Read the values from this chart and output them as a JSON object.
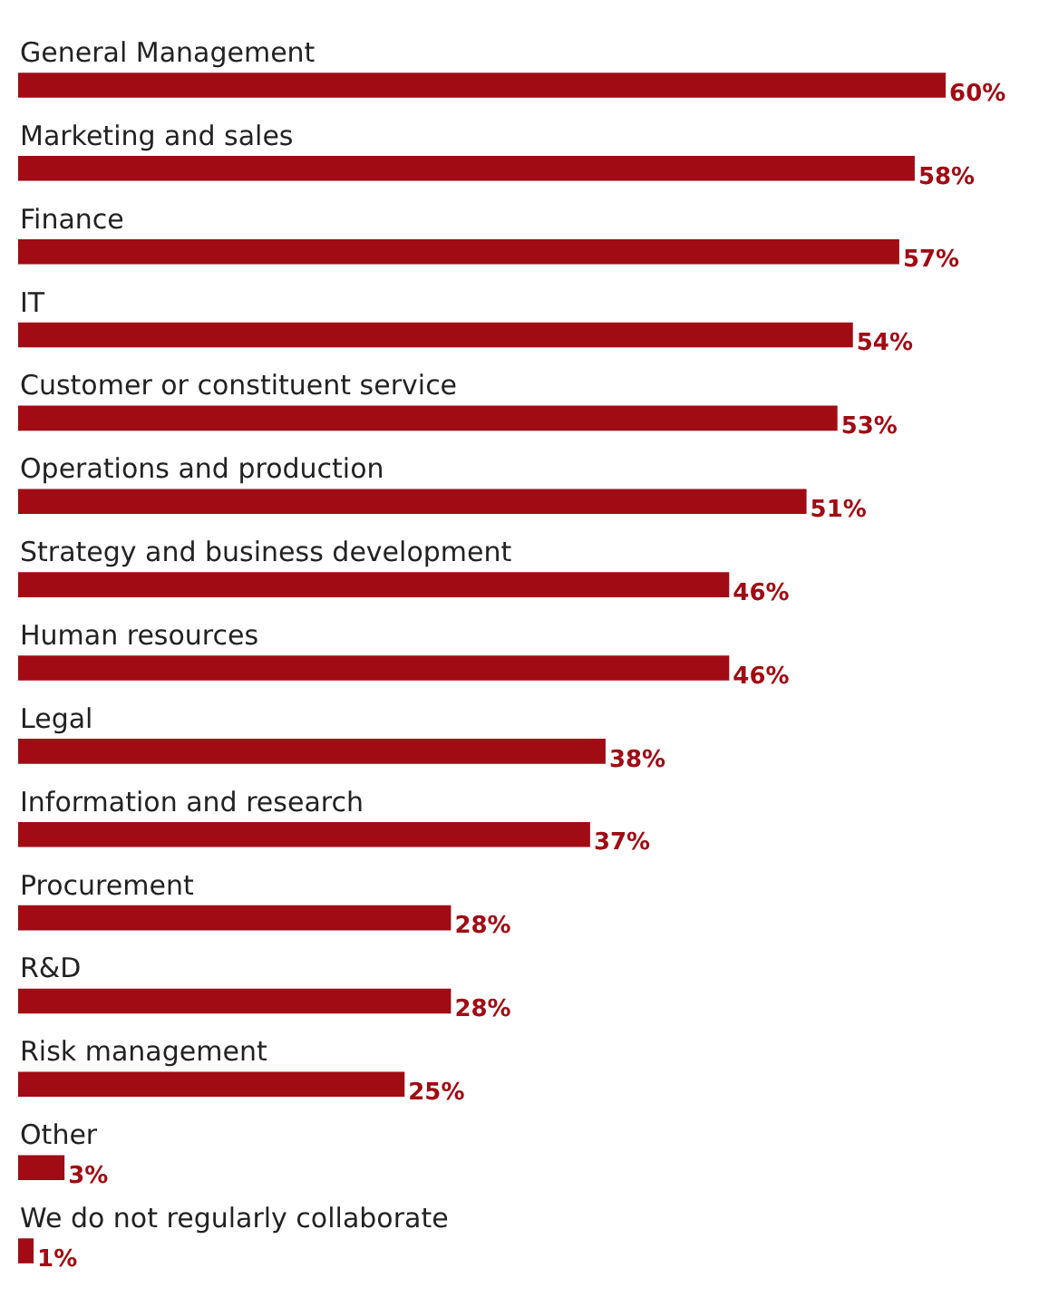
{
  "chart_data": {
    "type": "bar",
    "orientation": "horizontal",
    "color": "#a00b14",
    "categories": [
      "General Management",
      "Marketing and sales",
      "Finance",
      "IT",
      "Customer or constituent service",
      "Operations and production",
      "Strategy and business development",
      "Human resources",
      "Legal",
      "Information and research",
      "Procurement",
      "R&D",
      "Risk management",
      "Other",
      "We do not regularly collaborate"
    ],
    "values": [
      60,
      58,
      57,
      54,
      53,
      51,
      46,
      46,
      38,
      37,
      28,
      28,
      25,
      3,
      1
    ],
    "value_labels": [
      "60%",
      "58%",
      "57%",
      "54%",
      "53%",
      "51%",
      "46%",
      "46%",
      "38%",
      "37%",
      "28%",
      "28%",
      "25%",
      "3%",
      "1%"
    ]
  }
}
